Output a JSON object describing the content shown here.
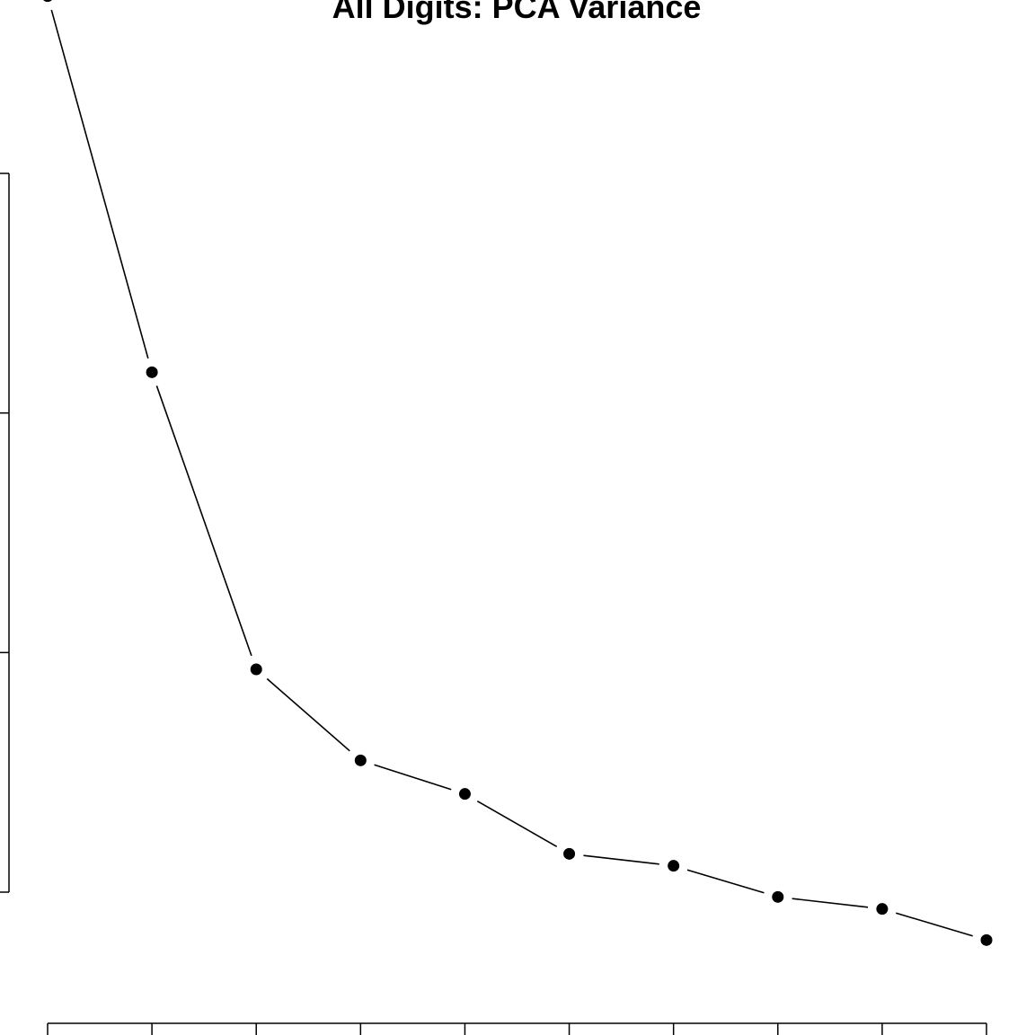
{
  "chart_data": {
    "type": "line",
    "title": "All Digits: PCA Variance",
    "xlabel": "",
    "ylabel": "",
    "x": [
      1,
      2,
      3,
      4,
      5,
      6,
      7,
      8,
      9,
      10
    ],
    "xlim": [
      1,
      10
    ],
    "ylim": [
      0,
      3
    ],
    "y_ticks": [
      0,
      1,
      2,
      3
    ],
    "series": [
      {
        "values": [
          3.74,
          2.17,
          0.93,
          0.55,
          0.41,
          0.16,
          0.11,
          -0.02,
          -0.07,
          -0.2
        ]
      }
    ],
    "markers": "filled-circle",
    "line_color": "#000000",
    "grid": false,
    "legend": "none"
  }
}
